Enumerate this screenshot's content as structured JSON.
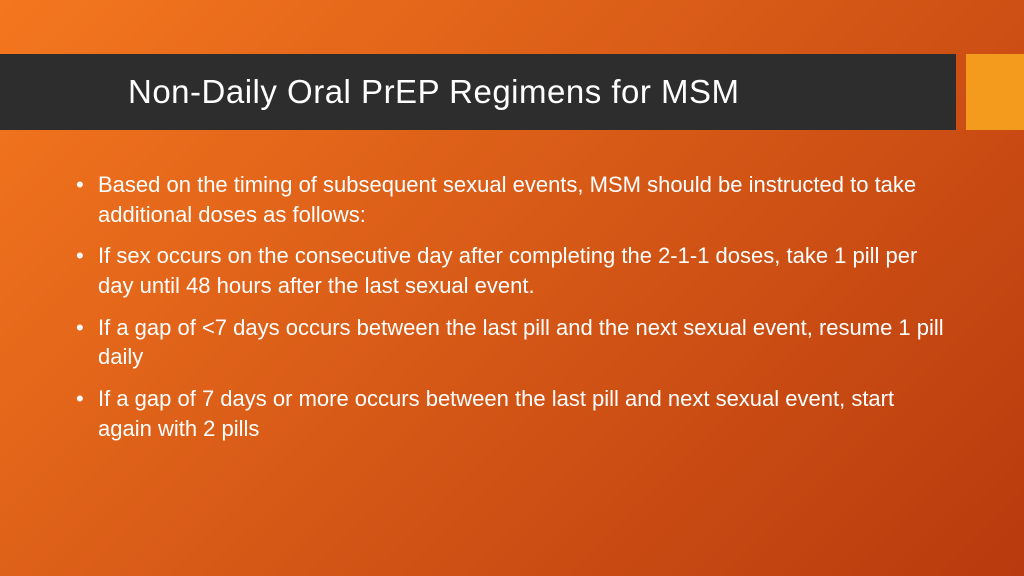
{
  "slide": {
    "title": "Non-Daily Oral PrEP Regimens for MSM",
    "bullets": [
      "Based on the timing of subsequent sexual events, MSM should be instructed to take additional doses as follows:",
      "If sex occurs on the consecutive day after completing the 2-1-1 doses, take 1 pill per day until 48 hours after the last sexual event.",
      "If a gap of <7 days occurs between the last pill and the next sexual event, resume 1 pill daily",
      "If a gap of 7 days or more occurs between the last pill and next sexual event, start again with 2 pills"
    ]
  },
  "styling": {
    "background_gradient_start": "#f4771f",
    "background_gradient_end": "#b83a0e",
    "title_bar_color": "#2d2d2d",
    "title_accent_color": "#f49b1e",
    "title_text_color": "#ffffff",
    "body_text_color": "#ffffff",
    "title_fontsize": 33,
    "body_fontsize": 22,
    "gradient_angle_deg": 135
  }
}
